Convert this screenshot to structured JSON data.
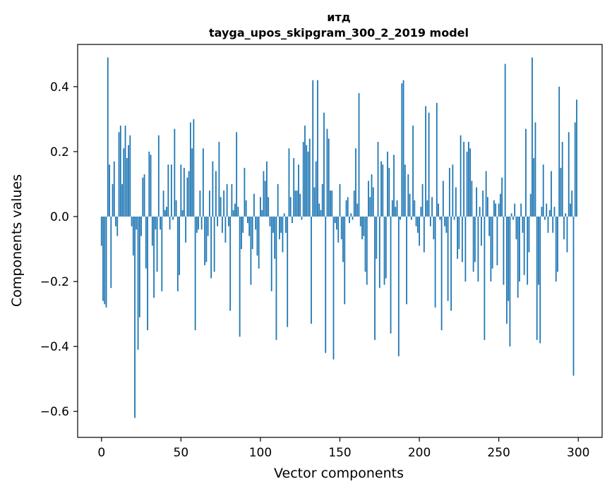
{
  "chart_data": {
    "type": "bar",
    "title_line1": "итд",
    "title_line2": "tayga_upos_skipgram_300_2_2019 model",
    "xlabel": "Vector components",
    "ylabel": "Components values",
    "xlim": [
      -15,
      315
    ],
    "ylim": [
      -0.68,
      0.53
    ],
    "xticks": [
      0,
      50,
      100,
      150,
      200,
      250,
      300
    ],
    "xtick_labels": [
      "0",
      "50",
      "100",
      "150",
      "200",
      "250",
      "300"
    ],
    "yticks": [
      -0.6,
      -0.4,
      -0.2,
      0.0,
      0.2,
      0.4
    ],
    "ytick_labels": [
      "−0.6",
      "−0.4",
      "−0.2",
      "0.0",
      "0.2",
      "0.4"
    ],
    "bar_color": "#1f77b4",
    "values": [
      -0.09,
      -0.26,
      -0.27,
      -0.28,
      0.49,
      0.16,
      -0.22,
      0.1,
      0.17,
      -0.03,
      -0.06,
      0.26,
      0.28,
      0.1,
      0.21,
      0.28,
      0.18,
      0.22,
      0.25,
      -0.03,
      -0.12,
      -0.62,
      -0.04,
      -0.41,
      -0.31,
      -0.06,
      0.12,
      0.13,
      -0.16,
      -0.35,
      0.2,
      0.19,
      -0.09,
      -0.25,
      -0.04,
      -0.17,
      0.25,
      -0.04,
      -0.23,
      0.08,
      0.02,
      0.03,
      0.16,
      -0.04,
      0.16,
      -0.01,
      0.27,
      0.05,
      -0.23,
      -0.18,
      0.16,
      0.02,
      0.15,
      -0.08,
      0.12,
      0.14,
      0.29,
      0.21,
      0.3,
      -0.35,
      -0.05,
      -0.04,
      0.08,
      -0.04,
      0.21,
      -0.15,
      -0.14,
      -0.06,
      0.08,
      -0.19,
      0.17,
      -0.17,
      0.14,
      -0.03,
      0.23,
      0.06,
      -0.05,
      0.08,
      -0.08,
      0.1,
      -0.03,
      -0.29,
      0.1,
      0.02,
      0.04,
      0.26,
      0.03,
      -0.37,
      -0.1,
      -0.05,
      0.15,
      0.05,
      -0.02,
      -0.06,
      -0.21,
      -0.1,
      0.07,
      -0.04,
      -0.12,
      -0.16,
      0.06,
      0.02,
      0.14,
      0.11,
      0.17,
      0.06,
      -0.03,
      -0.23,
      -0.05,
      -0.13,
      -0.38,
      0.1,
      -0.07,
      -0.05,
      -0.11,
      0.01,
      -0.05,
      -0.34,
      0.21,
      0.06,
      -0.02,
      0.18,
      0.08,
      0.08,
      0.16,
      0.07,
      -0.01,
      0.23,
      0.28,
      0.22,
      0.2,
      0.24,
      -0.33,
      0.42,
      0.09,
      0.17,
      0.42,
      0.04,
      0.02,
      0.1,
      0.32,
      -0.42,
      0.27,
      0.24,
      0.08,
      0.08,
      -0.44,
      -0.02,
      -0.04,
      -0.08,
      0.1,
      -0.07,
      -0.14,
      -0.27,
      0.05,
      0.06,
      -0.02,
      0.01,
      -0.01,
      0.08,
      0.21,
      0.04,
      0.38,
      -0.03,
      -0.07,
      -0.06,
      -0.17,
      -0.21,
      0.11,
      0.06,
      0.13,
      0.09,
      -0.38,
      -0.13,
      0.23,
      -0.22,
      0.17,
      0.16,
      -0.21,
      -0.19,
      0.2,
      0.15,
      -0.36,
      0.05,
      0.19,
      0.03,
      0.05,
      -0.43,
      -0.01,
      0.41,
      0.42,
      0.16,
      -0.27,
      0.13,
      0.07,
      -0.01,
      0.28,
      0.05,
      -0.03,
      -0.05,
      -0.09,
      0.03,
      0.1,
      -0.11,
      0.34,
      0.05,
      0.32,
      -0.03,
      0.06,
      -0.07,
      -0.28,
      0.35,
      0.04,
      -0.01,
      -0.35,
      0.11,
      -0.03,
      -0.05,
      -0.26,
      0.15,
      -0.29,
      0.16,
      -0.01,
      0.09,
      -0.13,
      -0.1,
      0.25,
      -0.14,
      0.23,
      -0.2,
      0.2,
      0.23,
      0.21,
      0.11,
      -0.17,
      -0.14,
      0.09,
      -0.2,
      0.03,
      -0.09,
      0.08,
      -0.38,
      0.14,
      0.06,
      -0.06,
      -0.2,
      -0.16,
      0.05,
      0.04,
      -0.15,
      0.04,
      0.07,
      0.12,
      -0.21,
      0.47,
      -0.33,
      -0.26,
      -0.4,
      0.01,
      -0.01,
      0.04,
      -0.07,
      -0.25,
      -0.2,
      0.04,
      -0.05,
      -0.18,
      0.27,
      -0.21,
      -0.11,
      0.07,
      0.49,
      0.18,
      0.29,
      -0.38,
      -0.21,
      -0.39,
      0.03,
      0.16,
      -0.01,
      0.04,
      -0.05,
      0.02,
      0.14,
      -0.05,
      0.03,
      -0.2,
      -0.17,
      0.4,
      0.15,
      0.23,
      -0.07,
      0.01,
      -0.11,
      0.26,
      0.04,
      0.08,
      -0.49,
      0.29,
      0.36
    ]
  }
}
